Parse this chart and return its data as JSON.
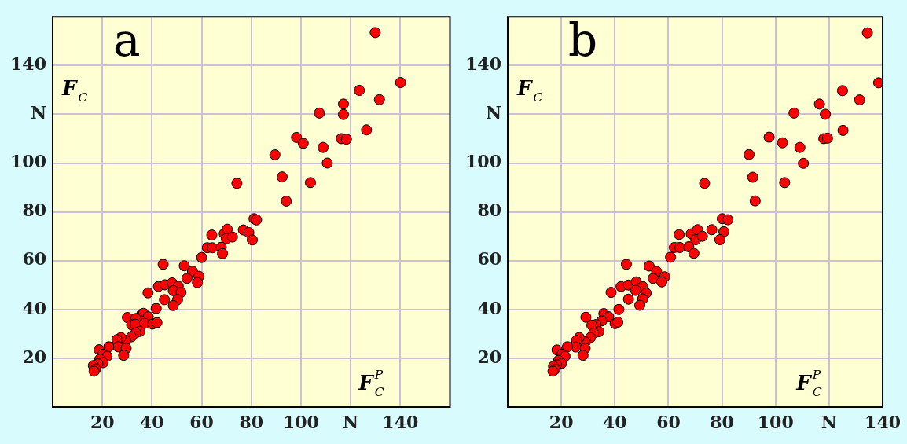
{
  "chart_data": [
    {
      "type": "scatter",
      "title": "a",
      "xlabel": "F$_{C}$$^{P}$",
      "ylabel": "F$_{C}$",
      "xlim": [
        0,
        160
      ],
      "ylim": [
        0,
        160
      ],
      "xticks": [
        20,
        40,
        60,
        80,
        100,
        {
          "value": 120,
          "label": "N"
        },
        140
      ],
      "yticks": [
        20,
        40,
        60,
        80,
        100,
        {
          "value": 120,
          "label": "N"
        },
        140
      ],
      "grid": true,
      "legend": false,
      "marker": "circle",
      "series": [
        {
          "color": "#ff0000",
          "x": [
            129.9,
            140.1,
            123.5,
            131.6,
            117.1,
            117.1,
            107.4,
            126.4,
            98.2,
            100.9,
            116.2,
            118.3,
            89.5,
            108.9,
            110.6,
            92.4,
            103.8,
            74.2,
            94.1,
            81.1,
            82.1,
            64.1,
            69.1,
            70.3,
            69.9,
            72.4,
            76.8,
            79.0,
            80.4,
            62.3,
            64.3,
            67.9,
            68.4,
            60.0,
            44.5,
            53.0,
            56.3,
            54.1,
            58.9,
            58.3,
            42.6,
            45.2,
            48.1,
            50.6,
            48.6,
            51.7,
            50.3,
            48.6,
            45.0,
            38.4,
            41.7,
            30.1,
            35.9,
            36.6,
            38.5,
            35.4,
            33.5,
            31.8,
            33.3,
            37.0,
            40.2,
            42.0,
            35.1,
            33.5,
            31.7,
            29.4,
            27.5,
            25.9,
            26.3,
            29.6,
            28.6,
            22.6,
            18.7,
            20.2,
            21.9,
            19.0,
            20.3,
            18.2,
            16.4,
            17.3,
            16.7
          ],
          "values": [
            153.5,
            133.0,
            129.8,
            126.0,
            124.2,
            119.9,
            120.5,
            113.6,
            110.5,
            108.1,
            110.0,
            109.8,
            103.4,
            106.4,
            100.0,
            94.3,
            92.0,
            91.7,
            84.4,
            77.2,
            76.7,
            70.5,
            71.1,
            72.9,
            69.0,
            69.7,
            72.6,
            71.5,
            68.5,
            65.3,
            65.3,
            65.5,
            62.9,
            61.3,
            58.5,
            57.9,
            55.7,
            52.7,
            53.6,
            51.0,
            49.4,
            50.1,
            50.9,
            49.5,
            47.7,
            47.0,
            44.0,
            41.6,
            44.0,
            46.8,
            40.4,
            36.7,
            38.1,
            38.4,
            37.0,
            35.4,
            36.3,
            33.7,
            33.9,
            34.3,
            34.0,
            34.6,
            31.0,
            30.4,
            28.8,
            27.3,
            28.5,
            27.6,
            24.7,
            24.1,
            21.2,
            24.7,
            23.5,
            21.6,
            20.8,
            19.6,
            18.2,
            17.7,
            17.0,
            15.6,
            14.7
          ]
        }
      ]
    },
    {
      "type": "scatter",
      "title": "b",
      "xlabel": "F$_{C}$$^{P}$",
      "ylabel": "F$_{C}$",
      "xlim": [
        0,
        140
      ],
      "ylim": [
        0,
        160
      ],
      "xticks": [
        20,
        40,
        60,
        80,
        100,
        {
          "value": 120,
          "label": "N"
        },
        140
      ],
      "yticks": [
        20,
        40,
        60,
        80,
        100,
        {
          "value": 120,
          "label": "N"
        },
        140
      ],
      "grid": true,
      "legend": false,
      "marker": "circle",
      "series": [
        {
          "color": "#ff0000",
          "x": [
            134.3,
            138.5,
            125.0,
            131.4,
            116.4,
            118.6,
            106.9,
            125.2,
            97.6,
            102.6,
            109.1,
            118.0,
            119.4,
            90.1,
            110.4,
            91.5,
            103.4,
            73.5,
            92.4,
            80.1,
            82.2,
            64.0,
            68.5,
            70.9,
            70.2,
            72.7,
            76.2,
            80.7,
            79.2,
            62.2,
            64.3,
            67.6,
            69.5,
            60.8,
            44.3,
            52.8,
            55.6,
            54.3,
            58.6,
            57.5,
            42.3,
            45.1,
            48.0,
            50.4,
            47.8,
            51.7,
            50.4,
            49.3,
            45.1,
            38.6,
            41.5,
            29.2,
            35.9,
            37.7,
            35.1,
            33.0,
            31.4,
            40.1,
            41.1,
            34.0,
            32.1,
            30.9,
            29.0,
            26.7,
            25.7,
            25.4,
            28.9,
            28.1,
            22.3,
            18.4,
            20.3,
            21.4,
            19.0,
            20.1,
            18.2,
            17.1,
            17.7,
            16.9
          ],
          "values": [
            153.4,
            132.9,
            129.7,
            125.9,
            124.2,
            120.0,
            120.5,
            113.4,
            110.6,
            108.3,
            106.4,
            110.0,
            110.2,
            103.5,
            99.9,
            94.2,
            92.0,
            91.7,
            84.5,
            77.2,
            76.8,
            70.7,
            71.0,
            72.7,
            68.6,
            70.0,
            72.7,
            71.9,
            68.6,
            65.4,
            65.4,
            65.7,
            63.0,
            61.4,
            58.5,
            57.8,
            55.6,
            52.7,
            53.4,
            51.3,
            49.4,
            50.0,
            51.3,
            49.4,
            47.8,
            46.7,
            44.3,
            41.7,
            44.2,
            47.0,
            40.0,
            36.8,
            38.3,
            37.0,
            35.3,
            33.8,
            33.5,
            34.2,
            34.8,
            30.9,
            30.3,
            28.5,
            26.7,
            28.5,
            27.3,
            24.6,
            24.1,
            21.2,
            24.7,
            23.4,
            21.7,
            20.8,
            19.1,
            17.9,
            17.3,
            16.7,
            15.5,
            14.7
          ]
        }
      ]
    }
  ]
}
